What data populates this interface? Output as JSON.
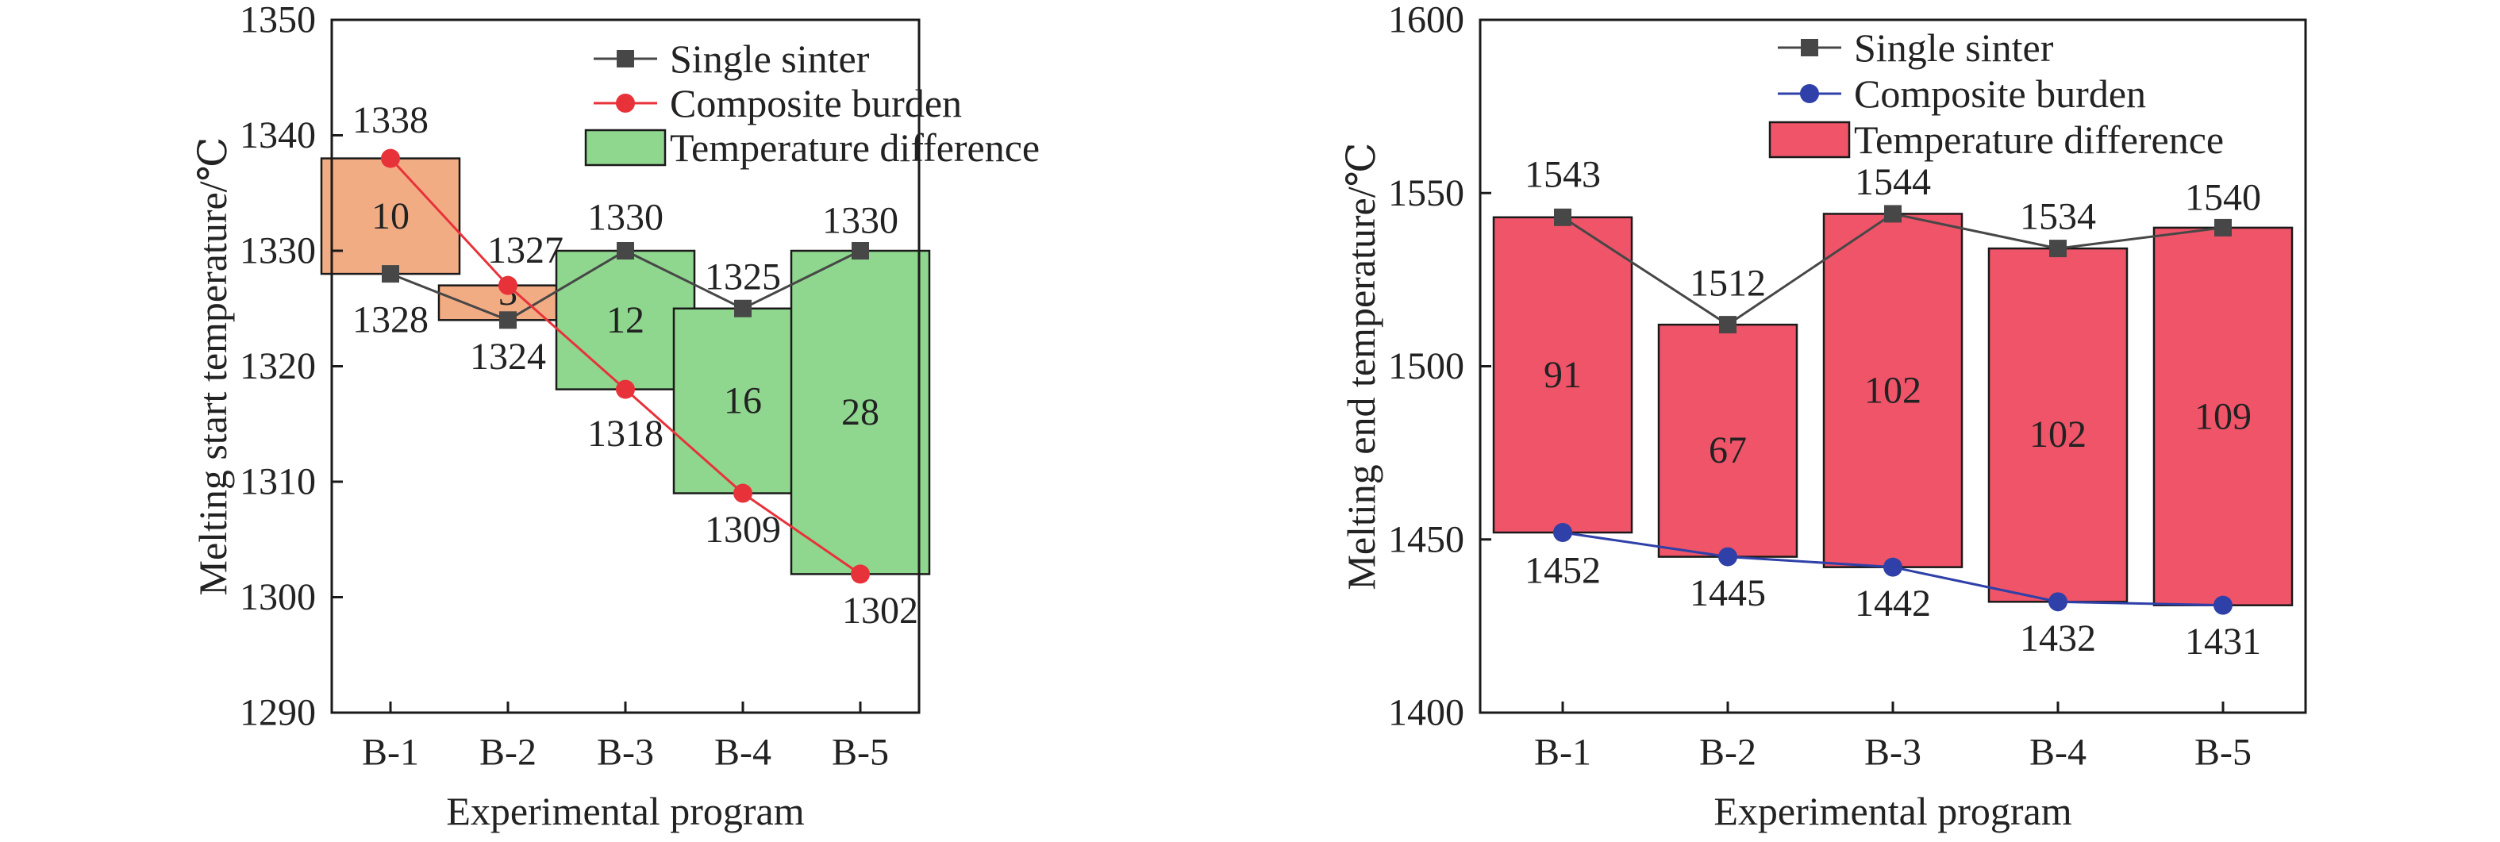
{
  "chart_data": [
    {
      "type": "bar",
      "title": "",
      "xlabel": "Experimental program",
      "ylabel": "Melting start temperature/℃",
      "categories": [
        "B-1",
        "B-2",
        "B-3",
        "B-4",
        "B-5"
      ],
      "ylim": [
        1290,
        1350
      ],
      "yticks": [
        1290,
        1300,
        1310,
        1320,
        1330,
        1340,
        1350
      ],
      "grid": false,
      "legend_position": "top-right",
      "series": [
        {
          "name": "Single sinter",
          "kind": "line",
          "marker": "square",
          "color": "#474747",
          "values": [
            1328,
            1324,
            1330,
            1325,
            1330
          ]
        },
        {
          "name": "Composite burden",
          "kind": "line",
          "marker": "circle",
          "color": "#e8323a",
          "values": [
            1338,
            1327,
            1318,
            1309,
            1302
          ]
        },
        {
          "name": "Temperature difference",
          "kind": "floating-bar",
          "values": [
            10,
            3,
            12,
            16,
            28
          ],
          "colors": [
            "#f2ac84",
            "#f2ac84",
            "#8fd68e",
            "#8fd68e",
            "#8fd68e"
          ]
        }
      ]
    },
    {
      "type": "bar",
      "title": "",
      "xlabel": "Experimental program",
      "ylabel": "Melting end temperature/℃",
      "categories": [
        "B-1",
        "B-2",
        "B-3",
        "B-4",
        "B-5"
      ],
      "ylim": [
        1400,
        1600
      ],
      "yticks": [
        1400,
        1450,
        1500,
        1550,
        1600
      ],
      "grid": false,
      "legend_position": "top-right",
      "series": [
        {
          "name": "Single sinter",
          "kind": "line",
          "marker": "square",
          "color": "#474747",
          "values": [
            1543,
            1512,
            1544,
            1534,
            1540
          ]
        },
        {
          "name": "Composite burden",
          "kind": "line",
          "marker": "circle",
          "color": "#2f40a8",
          "values": [
            1452,
            1445,
            1442,
            1432,
            1431
          ]
        },
        {
          "name": "Temperature difference",
          "kind": "floating-bar",
          "values": [
            91,
            67,
            102,
            102,
            109
          ],
          "colors": [
            "#ef5468",
            "#ef5468",
            "#ef5468",
            "#ef5468",
            "#ef5468"
          ]
        }
      ]
    }
  ]
}
